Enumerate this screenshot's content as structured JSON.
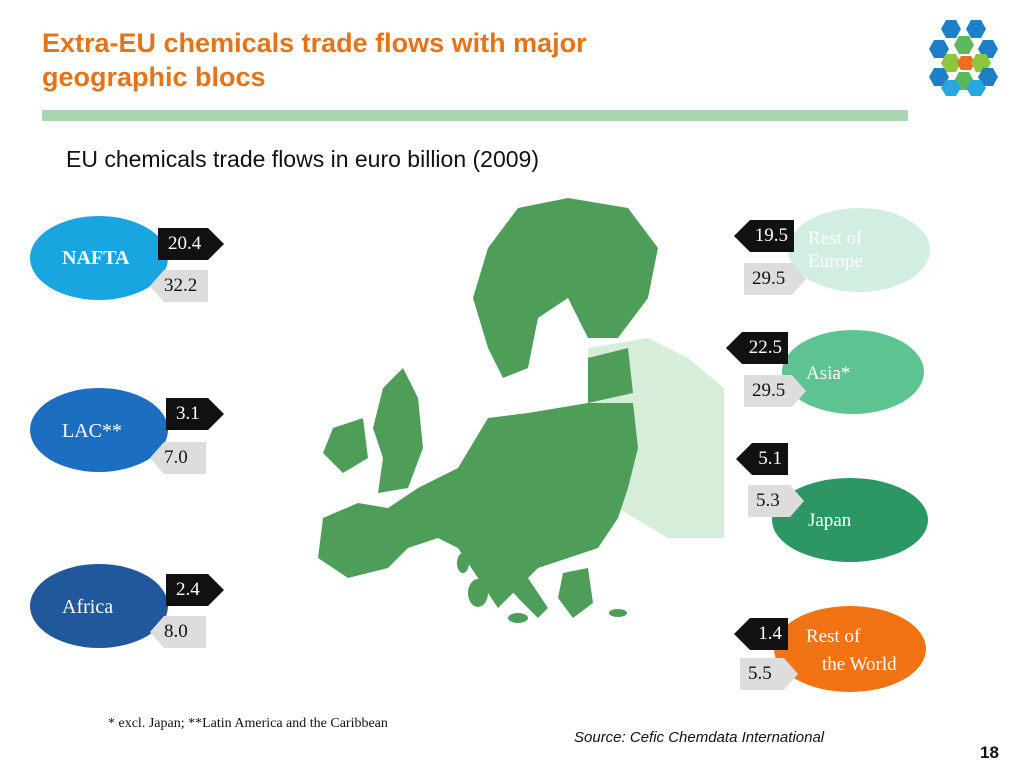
{
  "slide": {
    "title": "Extra-EU chemicals trade flows with major geographic blocs",
    "subtitle": "EU chemicals trade flows in euro billion (2009)",
    "footnote": "* excl. Japan; **Latin America and the Caribbean",
    "source": "Source: Cefic Chemdata International",
    "page_number": "18"
  },
  "blocs": {
    "nafta": {
      "label": "NAFTA",
      "value_dark": "20.4",
      "value_light": "32.2",
      "color": "#19a6e0"
    },
    "lac": {
      "label": "LAC**",
      "value_dark": "3.1",
      "value_light": "7.0",
      "color": "#1c6fc0"
    },
    "africa": {
      "label": "Africa",
      "value_dark": "2.4",
      "value_light": "8.0",
      "color": "#21579b"
    },
    "rest_europe": {
      "label_line1": "Rest of",
      "label_line2": "Europe",
      "value_dark": "19.5",
      "value_light": "29.5",
      "color": "#d2eee0"
    },
    "asia": {
      "label": "Asia*",
      "value_dark": "22.5",
      "value_light": "29.5",
      "color": "#5dc491"
    },
    "japan": {
      "label": "Japan",
      "value_dark": "5.1",
      "value_light": "5.3",
      "color": "#2c9665"
    },
    "rest_world": {
      "label_line1": "Rest of",
      "label_line2": "the World",
      "value_dark": "1.4",
      "value_light": "5.5",
      "color": "#f27313"
    }
  },
  "colors": {
    "title": "#e4741a",
    "rule": "#a9d6b0",
    "map_eu": "#4e9e5a",
    "map_non_eu": "#d5edd9"
  }
}
